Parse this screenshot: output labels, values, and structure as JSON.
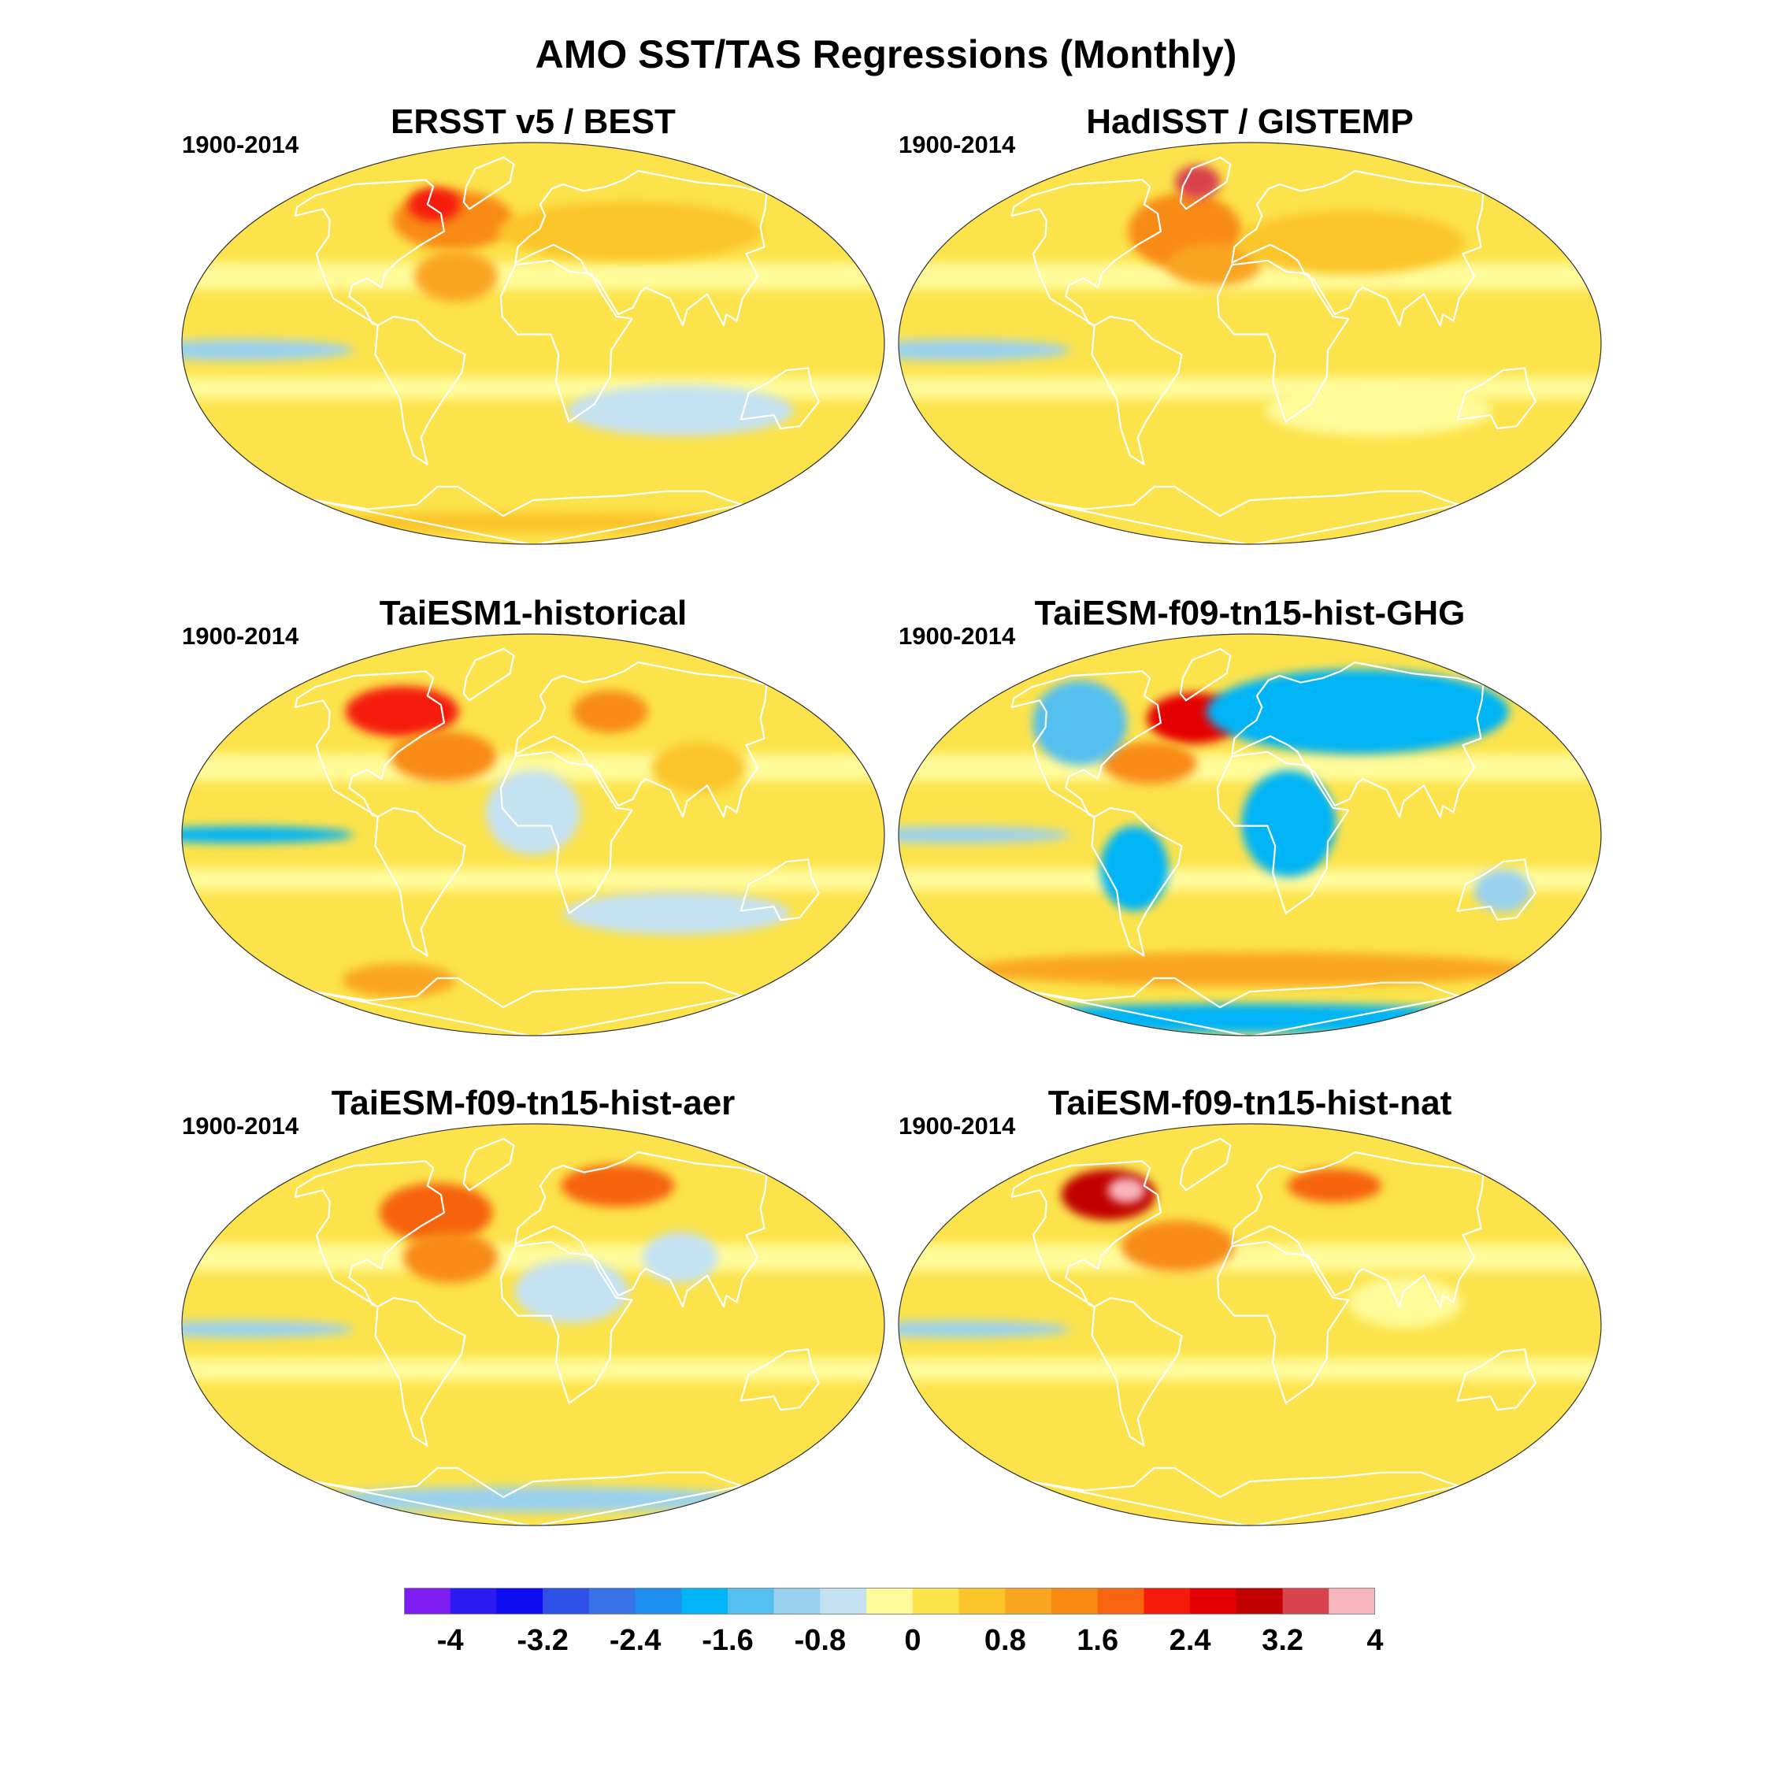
{
  "title": "AMO SST/TAS Regressions (Monthly)",
  "panels": [
    {
      "title": "ERSST v5 / BEST",
      "period": "1900-2014",
      "blobs": [
        {
          "lon": -52,
          "lat": 55,
          "rx": 32,
          "ry": 14,
          "v": 1.4
        },
        {
          "lon": -70,
          "lat": 62,
          "rx": 14,
          "ry": 8,
          "v": 2.2
        },
        {
          "lon": -42,
          "lat": 30,
          "rx": 22,
          "ry": 12,
          "v": 1.0
        },
        {
          "lon": 60,
          "lat": 50,
          "rx": 70,
          "ry": 14,
          "v": 0.4
        },
        {
          "lon": -150,
          "lat": -3,
          "rx": 60,
          "ry": 5,
          "v": -1.0
        },
        {
          "lon": 80,
          "lat": -30,
          "rx": 60,
          "ry": 12,
          "v": -0.5
        },
        {
          "lon": 0,
          "lat": -80,
          "rx": 120,
          "ry": 5,
          "v": 0.5
        }
      ]
    },
    {
      "title": "HadISST / GISTEMP",
      "period": "1900-2014",
      "blobs": [
        {
          "lon": -40,
          "lat": 50,
          "rx": 30,
          "ry": 18,
          "v": 1.5
        },
        {
          "lon": -45,
          "lat": 72,
          "rx": 12,
          "ry": 8,
          "v": 3.2
        },
        {
          "lon": -20,
          "lat": 35,
          "rx": 25,
          "ry": 10,
          "v": 1.0
        },
        {
          "lon": 60,
          "lat": 45,
          "rx": 60,
          "ry": 15,
          "v": 0.6
        },
        {
          "lon": -150,
          "lat": -3,
          "rx": 60,
          "ry": 5,
          "v": -1.1
        },
        {
          "lon": 70,
          "lat": -30,
          "rx": 60,
          "ry": 12,
          "v": -0.4
        }
      ]
    },
    {
      "title": "TaiESM1-historical",
      "period": "1900-2014",
      "blobs": [
        {
          "lon": -85,
          "lat": 55,
          "rx": 30,
          "ry": 12,
          "v": 2.2
        },
        {
          "lon": -50,
          "lat": 35,
          "rx": 28,
          "ry": 12,
          "v": 1.3
        },
        {
          "lon": 50,
          "lat": 55,
          "rx": 20,
          "ry": 10,
          "v": 1.2
        },
        {
          "lon": 90,
          "lat": 30,
          "rx": 25,
          "ry": 12,
          "v": 0.6
        },
        {
          "lon": -150,
          "lat": 0,
          "rx": 60,
          "ry": 4,
          "v": -1.8
        },
        {
          "lon": 0,
          "lat": 10,
          "rx": 25,
          "ry": 20,
          "v": -0.5
        },
        {
          "lon": 80,
          "lat": -35,
          "rx": 60,
          "ry": 10,
          "v": -0.7
        },
        {
          "lon": -100,
          "lat": -65,
          "rx": 30,
          "ry": 8,
          "v": 1.0
        }
      ]
    },
    {
      "title": "TaiESM-f09-tn15-hist-GHG",
      "period": "1900-2014",
      "blobs": [
        {
          "lon": -35,
          "lat": 52,
          "rx": 25,
          "ry": 12,
          "v": 2.4
        },
        {
          "lon": -55,
          "lat": 32,
          "rx": 25,
          "ry": 10,
          "v": 1.2
        },
        {
          "lon": 70,
          "lat": 55,
          "rx": 80,
          "ry": 20,
          "v": -1.7
        },
        {
          "lon": 20,
          "lat": 5,
          "rx": 25,
          "ry": 25,
          "v": -1.8
        },
        {
          "lon": -105,
          "lat": 50,
          "rx": 25,
          "ry": 20,
          "v": -1.6
        },
        {
          "lon": -60,
          "lat": -15,
          "rx": 18,
          "ry": 20,
          "v": -1.7
        },
        {
          "lon": 135,
          "lat": -25,
          "rx": 15,
          "ry": 10,
          "v": -1.2
        },
        {
          "lon": -150,
          "lat": 0,
          "rx": 60,
          "ry": 4,
          "v": -1.2
        },
        {
          "lon": 0,
          "lat": -60,
          "rx": 150,
          "ry": 8,
          "v": 0.9
        },
        {
          "lon": 0,
          "lat": -82,
          "rx": 150,
          "ry": 7,
          "v": -1.9
        }
      ]
    },
    {
      "title": "TaiESM-f09-tn15-hist-aer",
      "period": "1900-2014",
      "blobs": [
        {
          "lon": -60,
          "lat": 50,
          "rx": 30,
          "ry": 14,
          "v": 1.8
        },
        {
          "lon": -45,
          "lat": 30,
          "rx": 25,
          "ry": 12,
          "v": 1.3
        },
        {
          "lon": 60,
          "lat": 62,
          "rx": 30,
          "ry": 10,
          "v": 1.6
        },
        {
          "lon": 20,
          "lat": 15,
          "rx": 30,
          "ry": 15,
          "v": -0.6
        },
        {
          "lon": 80,
          "lat": 30,
          "rx": 20,
          "ry": 12,
          "v": -0.7
        },
        {
          "lon": -150,
          "lat": -2,
          "rx": 60,
          "ry": 4,
          "v": -1.2
        },
        {
          "lon": 0,
          "lat": -78,
          "rx": 120,
          "ry": 6,
          "v": -1.0
        }
      ]
    },
    {
      "title": "TaiESM-f09-tn15-hist-nat",
      "period": "1900-2014",
      "blobs": [
        {
          "lon": -95,
          "lat": 58,
          "rx": 25,
          "ry": 12,
          "v": 3.0
        },
        {
          "lon": -85,
          "lat": 60,
          "rx": 10,
          "ry": 6,
          "v": 4.0
        },
        {
          "lon": -40,
          "lat": 35,
          "rx": 30,
          "ry": 12,
          "v": 1.3
        },
        {
          "lon": 60,
          "lat": 62,
          "rx": 25,
          "ry": 8,
          "v": 1.6
        },
        {
          "lon": -150,
          "lat": -2,
          "rx": 60,
          "ry": 4,
          "v": -1.0
        },
        {
          "lon": 80,
          "lat": 10,
          "rx": 30,
          "ry": 12,
          "v": -0.4
        }
      ]
    }
  ],
  "colorbar": {
    "levels": [
      -4,
      -3.6,
      -3.2,
      -2.8,
      -2.4,
      -2.0,
      -1.6,
      -1.2,
      -0.8,
      -0.4,
      0,
      0.4,
      0.8,
      1.2,
      1.6,
      2.0,
      2.4,
      2.8,
      3.2,
      3.6,
      4
    ],
    "colors": [
      "#7f1cf2",
      "#2a1cf2",
      "#0d0df0",
      "#2e50e6",
      "#3772e8",
      "#1f8fef",
      "#00b4f6",
      "#55bff0",
      "#9ad1ef",
      "#c5e2f3",
      "#fffa9a",
      "#fce34c",
      "#fbc52a",
      "#f9a522",
      "#f88a12",
      "#f66410",
      "#f51b0b",
      "#e40000",
      "#c10000",
      "#d9434d",
      "#f7b5bd"
    ],
    "labels": [
      "-4",
      "-3.2",
      "-2.4",
      "-1.6",
      "-0.8",
      "0",
      "0.8",
      "1.6",
      "2.4",
      "3.2",
      "4"
    ]
  }
}
